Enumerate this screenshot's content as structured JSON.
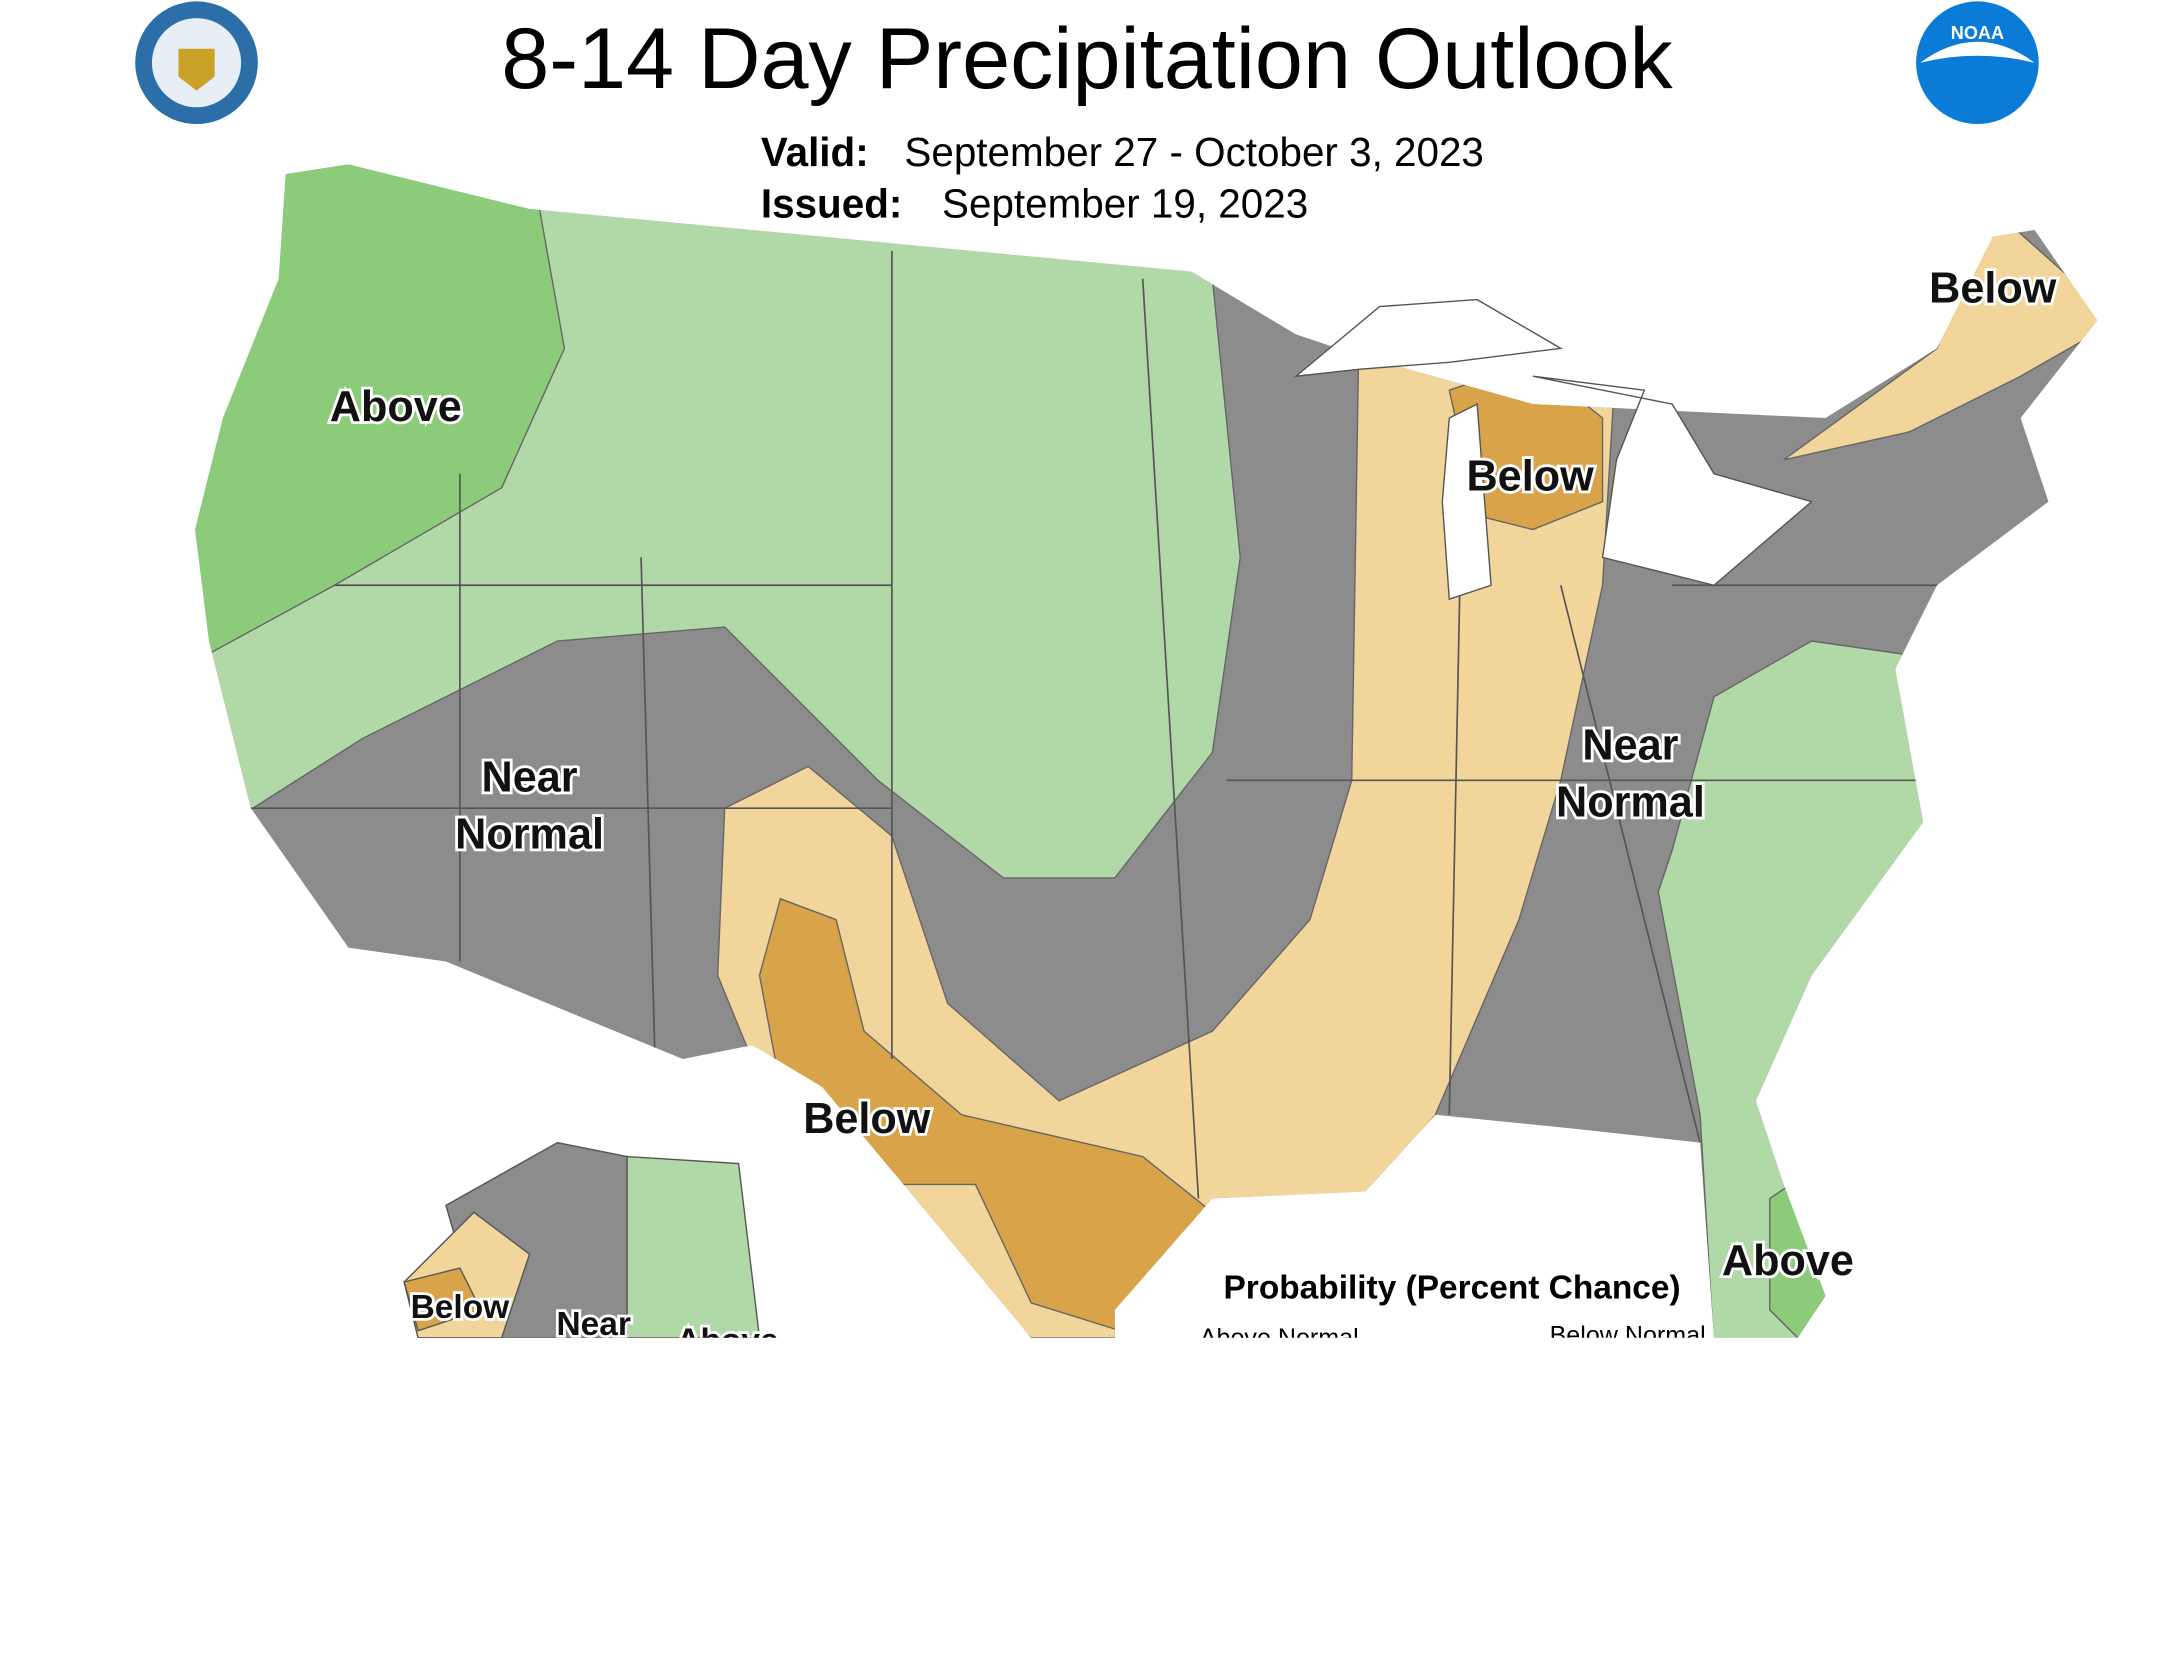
{
  "header": {
    "title": "8-14 Day Precipitation Outlook",
    "valid_label": "Valid:",
    "valid": "September 27 - October 3, 2023",
    "issued_label": "Issued:",
    "issued": "September 19, 2023"
  },
  "labels": [
    "Above",
    "Below",
    "Below",
    "Near\nNormal",
    "Near\nNormal",
    "Below",
    "Above"
  ],
  "alaska_labels": [
    "Below",
    "Near",
    "Above"
  ],
  "legend": {
    "title": "Probability (Percent Chance)",
    "above": "Above Normal",
    "below": "Below Normal"
  },
  "logos": [
    "NOAA"
  ]
}
